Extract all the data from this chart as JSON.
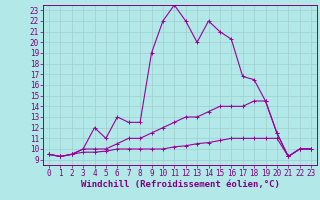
{
  "xlabel": "Windchill (Refroidissement éolien,°C)",
  "background_color": "#b3e8e8",
  "grid_color": "#9fcfcf",
  "line_color": "#990099",
  "xlim": [
    -0.5,
    23.5
  ],
  "ylim": [
    8.5,
    23.5
  ],
  "xticks": [
    0,
    1,
    2,
    3,
    4,
    5,
    6,
    7,
    8,
    9,
    10,
    11,
    12,
    13,
    14,
    15,
    16,
    17,
    18,
    19,
    20,
    21,
    22,
    23
  ],
  "yticks": [
    9,
    10,
    11,
    12,
    13,
    14,
    15,
    16,
    17,
    18,
    19,
    20,
    21,
    22,
    23
  ],
  "line1_x": [
    0,
    1,
    2,
    3,
    4,
    5,
    6,
    7,
    8,
    9,
    10,
    11,
    12,
    13,
    14,
    15,
    16,
    17,
    18,
    19,
    20,
    21,
    22,
    23
  ],
  "line1_y": [
    9.5,
    9.3,
    9.5,
    10.0,
    12.0,
    11.0,
    13.0,
    12.5,
    12.5,
    19.0,
    22.0,
    23.5,
    22.0,
    20.0,
    22.0,
    21.0,
    20.3,
    16.8,
    16.5,
    14.5,
    11.5,
    9.3,
    10.0,
    10.0
  ],
  "line2_x": [
    0,
    1,
    2,
    3,
    4,
    5,
    6,
    7,
    8,
    9,
    10,
    11,
    12,
    13,
    14,
    15,
    16,
    17,
    18,
    19,
    20,
    21,
    22,
    23
  ],
  "line2_y": [
    9.5,
    9.3,
    9.5,
    10.0,
    10.0,
    10.0,
    10.5,
    11.0,
    11.0,
    11.5,
    12.0,
    12.5,
    13.0,
    13.0,
    13.5,
    14.0,
    14.0,
    14.0,
    14.5,
    14.5,
    11.5,
    9.3,
    10.0,
    10.0
  ],
  "line3_x": [
    0,
    1,
    2,
    3,
    4,
    5,
    6,
    7,
    8,
    9,
    10,
    11,
    12,
    13,
    14,
    15,
    16,
    17,
    18,
    19,
    20,
    21,
    22,
    23
  ],
  "line3_y": [
    9.5,
    9.3,
    9.5,
    9.7,
    9.7,
    9.8,
    10.0,
    10.0,
    10.0,
    10.0,
    10.0,
    10.2,
    10.3,
    10.5,
    10.6,
    10.8,
    11.0,
    11.0,
    11.0,
    11.0,
    11.0,
    9.3,
    10.0,
    10.0
  ],
  "marker": "+",
  "markersize": 3,
  "linewidth": 0.8,
  "tick_fontsize": 5.5,
  "label_fontsize": 6.5
}
